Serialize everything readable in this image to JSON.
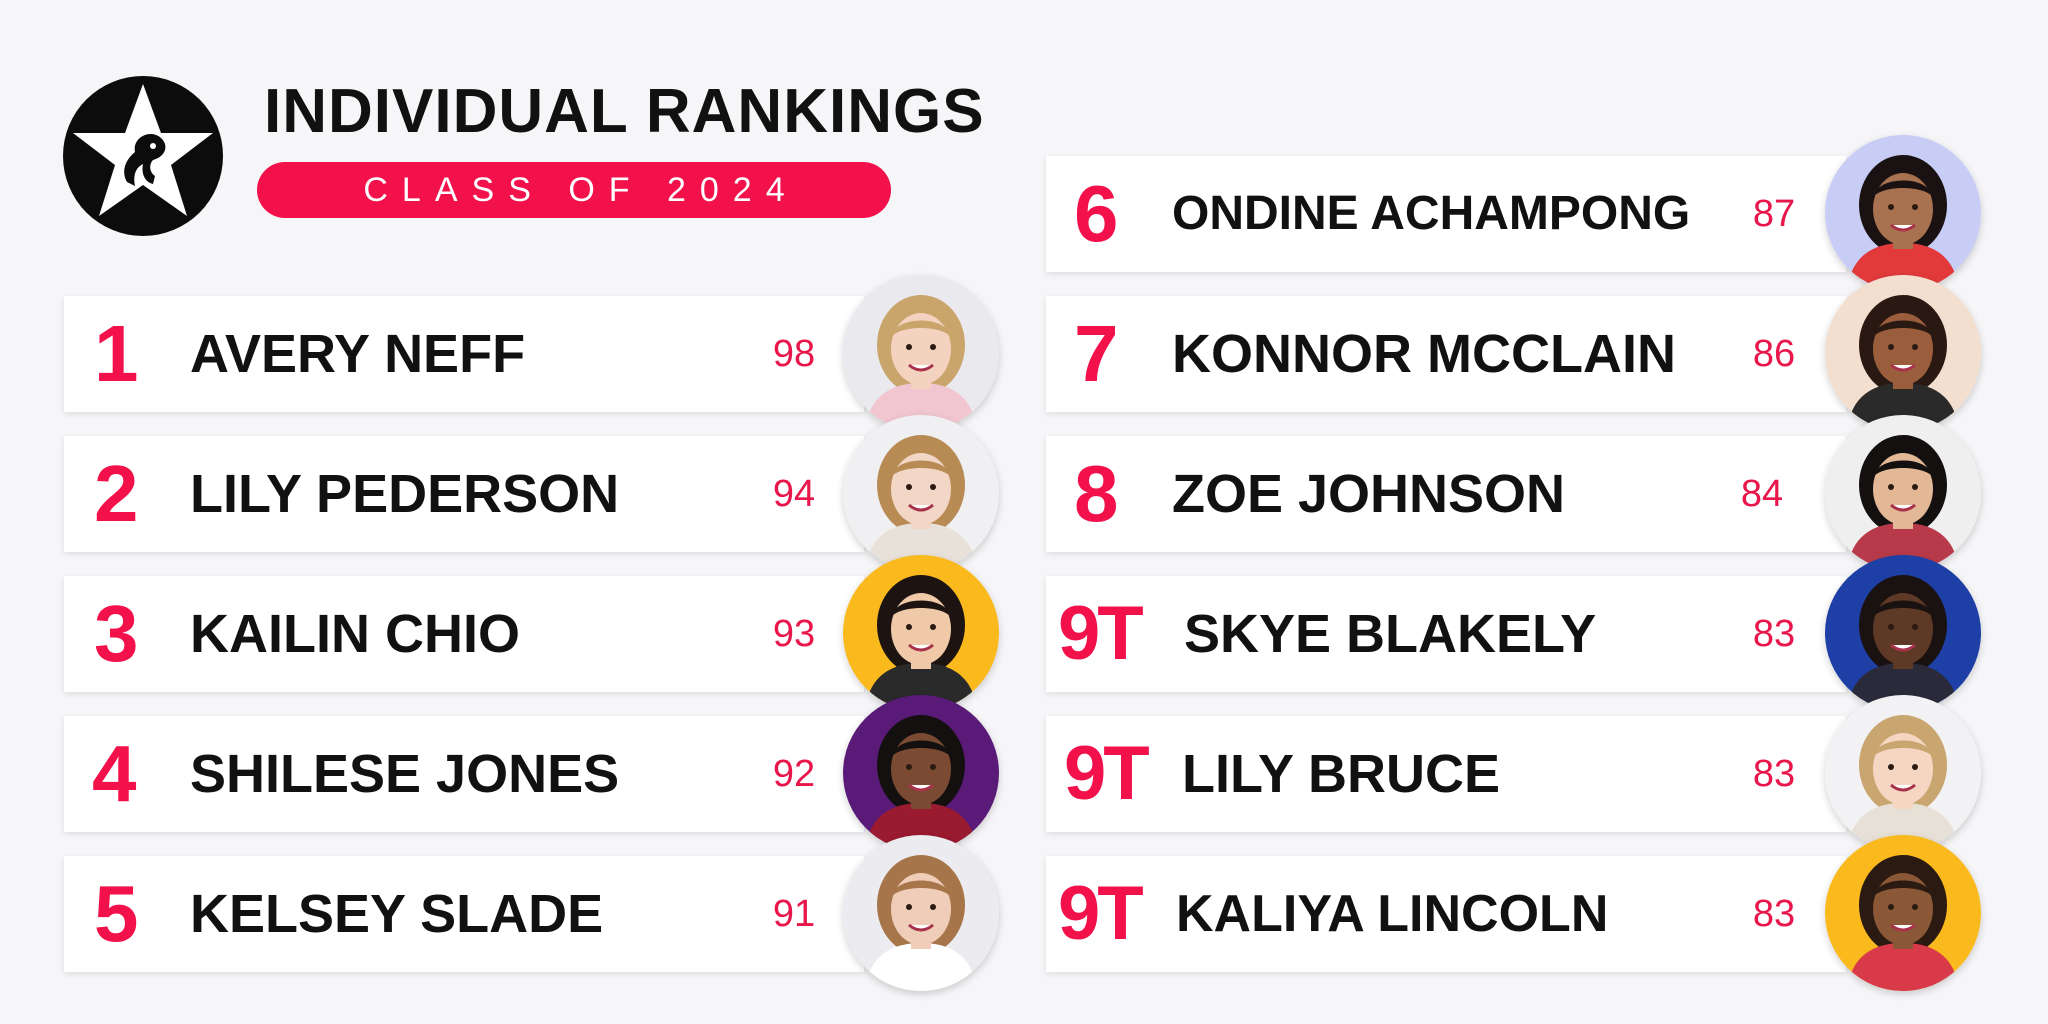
{
  "header": {
    "title": "INDIVIDUAL RANKINGS",
    "subtitle": "CLASS OF 2024",
    "accent_color": "#f2114a",
    "logo_icon": "star-gymnast-logo-icon"
  },
  "rankings": [
    {
      "rank": "1",
      "name": "AVERY NEFF",
      "score": "98",
      "avatar_bg": "#e9e9ee",
      "hair": "#c9a46b",
      "skin": "#f3d2bf",
      "shirt": "#f1c6d0"
    },
    {
      "rank": "2",
      "name": "LILY PEDERSON",
      "score": "94",
      "avatar_bg": "#f0f0f2",
      "hair": "#b88a54",
      "skin": "#f2d6c6",
      "shirt": "#e8e1da"
    },
    {
      "rank": "3",
      "name": "KAILIN CHIO",
      "score": "93",
      "avatar_bg": "#fab91c",
      "hair": "#1d1412",
      "skin": "#efc9a8",
      "shirt": "#2a2a2a"
    },
    {
      "rank": "4",
      "name": "SHILESE JONES",
      "score": "92",
      "avatar_bg": "#5a1a78",
      "hair": "#151010",
      "skin": "#7a4a32",
      "shirt": "#9a1a30"
    },
    {
      "rank": "5",
      "name": "KELSEY SLADE",
      "score": "91",
      "avatar_bg": "#ececf0",
      "hair": "#a6754a",
      "skin": "#f0cdb8",
      "shirt": "#ffffff"
    },
    {
      "rank": "6",
      "name": "ONDINE ACHAMPONG",
      "score": "87",
      "avatar_bg": "#c7cdf5",
      "hair": "#1a1212",
      "skin": "#a8714f",
      "shirt": "#e23a3a"
    },
    {
      "rank": "7",
      "name": "KONNOR MCCLAIN",
      "score": "86",
      "avatar_bg": "#f3dfcf",
      "hair": "#2a1812",
      "skin": "#9a5e3c",
      "shirt": "#2a2a2a"
    },
    {
      "rank": "8",
      "name": "ZOE JOHNSON",
      "score": "84",
      "avatar_bg": "#efefef",
      "hair": "#141010",
      "skin": "#e3b896",
      "shirt": "#b83a4a"
    },
    {
      "rank": "9T",
      "name": "SKYE BLAKELY",
      "score": "83",
      "avatar_bg": "#1d3fa6",
      "hair": "#1a1210",
      "skin": "#5e3a26",
      "shirt": "#2a2a3a"
    },
    {
      "rank": "9T",
      "name": "LILY BRUCE",
      "score": "83",
      "avatar_bg": "#f2f2f4",
      "hair": "#c9a66f",
      "skin": "#f4d6c2",
      "shirt": "#e7e0d6"
    },
    {
      "rank": "9T",
      "name": "KALIYA LINCOLN",
      "score": "83",
      "avatar_bg": "#fab91c",
      "hair": "#2a1a12",
      "skin": "#8a5836",
      "shirt": "#d83a4a"
    }
  ]
}
